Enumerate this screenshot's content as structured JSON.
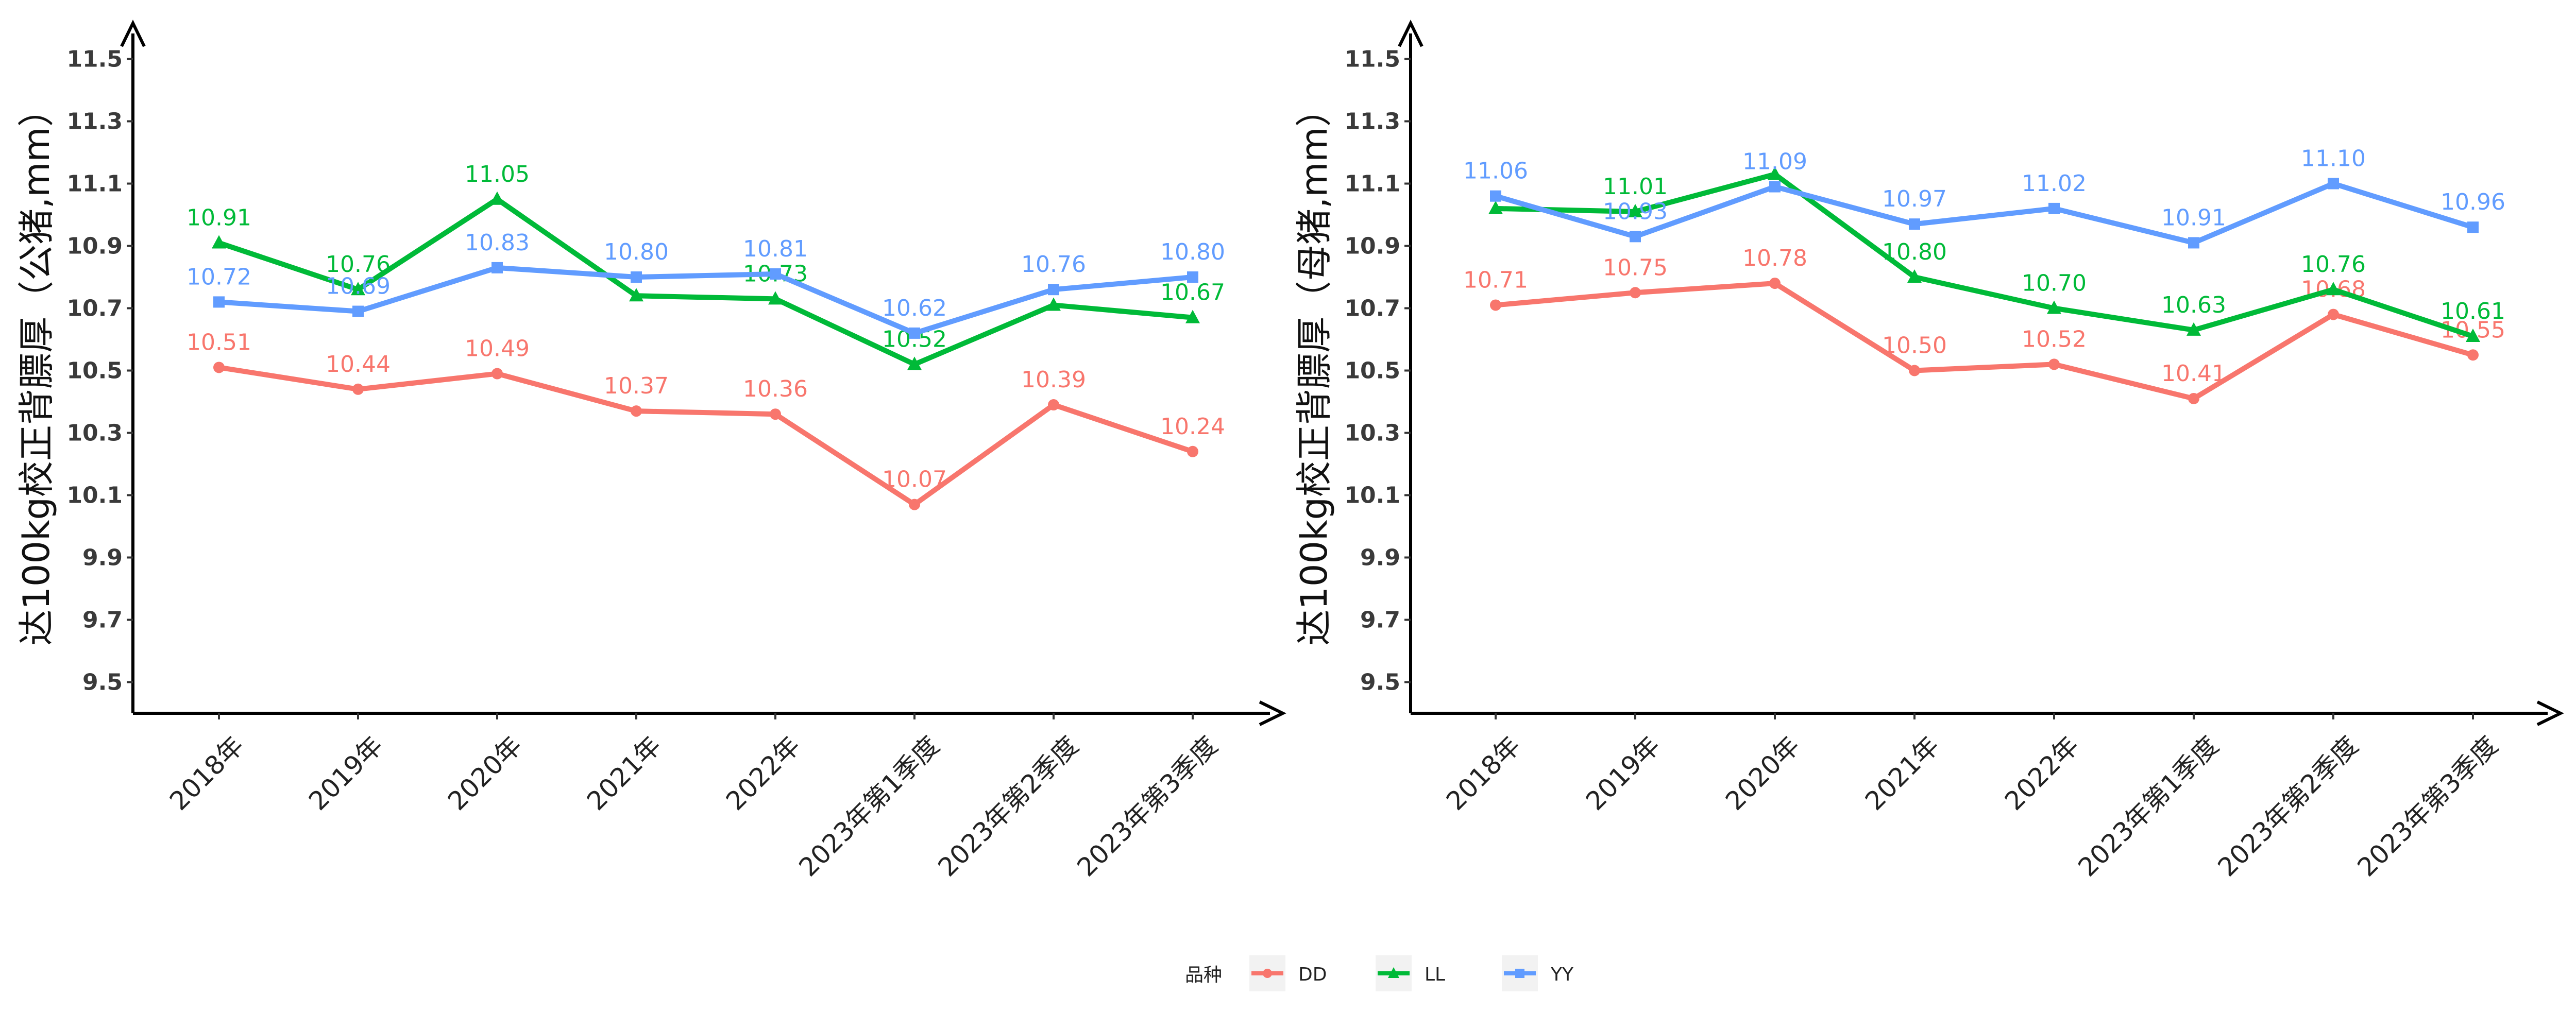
{
  "colors": {
    "DD": "#F8766D",
    "LL": "#00BA38",
    "YY": "#619CFF"
  },
  "legend": {
    "title": "品种",
    "items": [
      "DD",
      "LL",
      "YY"
    ]
  },
  "chart_data": [
    {
      "type": "line",
      "ylabel": "达100kg校正背膘厚（公猪,mm）",
      "xlabel": "",
      "ylim": [
        9.4,
        11.6
      ],
      "yticks": [
        "9.5",
        "9.7",
        "9.9",
        "10.1",
        "10.3",
        "10.5",
        "10.7",
        "10.9",
        "11.1",
        "11.3",
        "11.5"
      ],
      "categories": [
        "2018年",
        "2019年",
        "2020年",
        "2021年",
        "2022年",
        "2023年第1季度",
        "2023年第2季度",
        "2023年第3季度"
      ],
      "series": [
        {
          "name": "DD",
          "marker": "circle",
          "values": [
            10.51,
            10.44,
            10.49,
            10.37,
            10.36,
            10.07,
            10.39,
            10.24
          ],
          "labels": [
            "10.51",
            "10.44",
            "10.49",
            "10.37",
            "10.36",
            "10.07",
            "10.39",
            "10.24"
          ]
        },
        {
          "name": "LL",
          "marker": "triangle",
          "values": [
            10.91,
            10.76,
            11.05,
            10.74,
            10.73,
            10.52,
            10.71,
            10.67
          ],
          "labels": [
            "10.91",
            "10.76",
            "11.05",
            "",
            "10.73",
            "10.52",
            "",
            "10.67"
          ]
        },
        {
          "name": "YY",
          "marker": "square",
          "values": [
            10.72,
            10.69,
            10.83,
            10.8,
            10.81,
            10.62,
            10.76,
            10.8
          ],
          "labels": [
            "10.72",
            "10.69",
            "10.83",
            "10.80",
            "10.81",
            "10.62",
            "10.76",
            "10.80"
          ]
        }
      ]
    },
    {
      "type": "line",
      "ylabel": "达100kg校正背膘厚（母猪,mm）",
      "xlabel": "",
      "ylim": [
        9.4,
        11.6
      ],
      "yticks": [
        "9.5",
        "9.7",
        "9.9",
        "10.1",
        "10.3",
        "10.5",
        "10.7",
        "10.9",
        "11.1",
        "11.3",
        "11.5"
      ],
      "categories": [
        "2018年",
        "2019年",
        "2020年",
        "2021年",
        "2022年",
        "2023年第1季度",
        "2023年第2季度",
        "2023年第3季度"
      ],
      "series": [
        {
          "name": "DD",
          "marker": "circle",
          "values": [
            10.71,
            10.75,
            10.78,
            10.5,
            10.52,
            10.41,
            10.68,
            10.55
          ],
          "labels": [
            "10.71",
            "10.75",
            "10.78",
            "10.50",
            "10.52",
            "10.41",
            "10.68",
            "10.55"
          ]
        },
        {
          "name": "LL",
          "marker": "triangle",
          "values": [
            11.02,
            11.01,
            11.13,
            10.8,
            10.7,
            10.63,
            10.76,
            10.61
          ],
          "labels": [
            "",
            "11.01",
            "",
            "10.80",
            "10.70",
            "10.63",
            "10.76",
            "10.61"
          ]
        },
        {
          "name": "YY",
          "marker": "square",
          "values": [
            11.06,
            10.93,
            11.09,
            10.97,
            11.02,
            10.91,
            11.1,
            10.96
          ],
          "labels": [
            "11.06",
            "10.93",
            "11.09",
            "10.97",
            "11.02",
            "10.91",
            "11.10",
            "10.96"
          ]
        }
      ]
    }
  ]
}
